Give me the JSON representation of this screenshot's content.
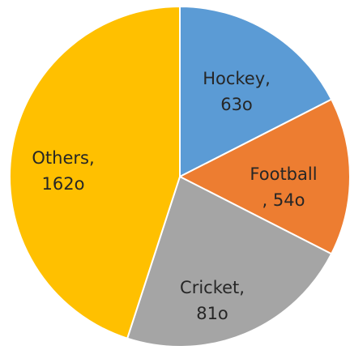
{
  "chart_data": {
    "type": "pie",
    "unit": "degrees",
    "slices": [
      {
        "name": "Hockey",
        "value": 63,
        "color": "#5b9bd5",
        "label_lines": [
          "Hockey,",
          "63o"
        ]
      },
      {
        "name": "Football",
        "value": 54,
        "color": "#ed7d31",
        "label_lines": [
          "Football",
          ", 54o"
        ]
      },
      {
        "name": "Cricket",
        "value": 81,
        "color": "#a5a5a5",
        "label_lines": [
          "Cricket,",
          "81o"
        ]
      },
      {
        "name": "Others",
        "value": 162,
        "color": "#ffc000",
        "label_lines": [
          "Others,",
          "162o"
        ]
      }
    ]
  }
}
